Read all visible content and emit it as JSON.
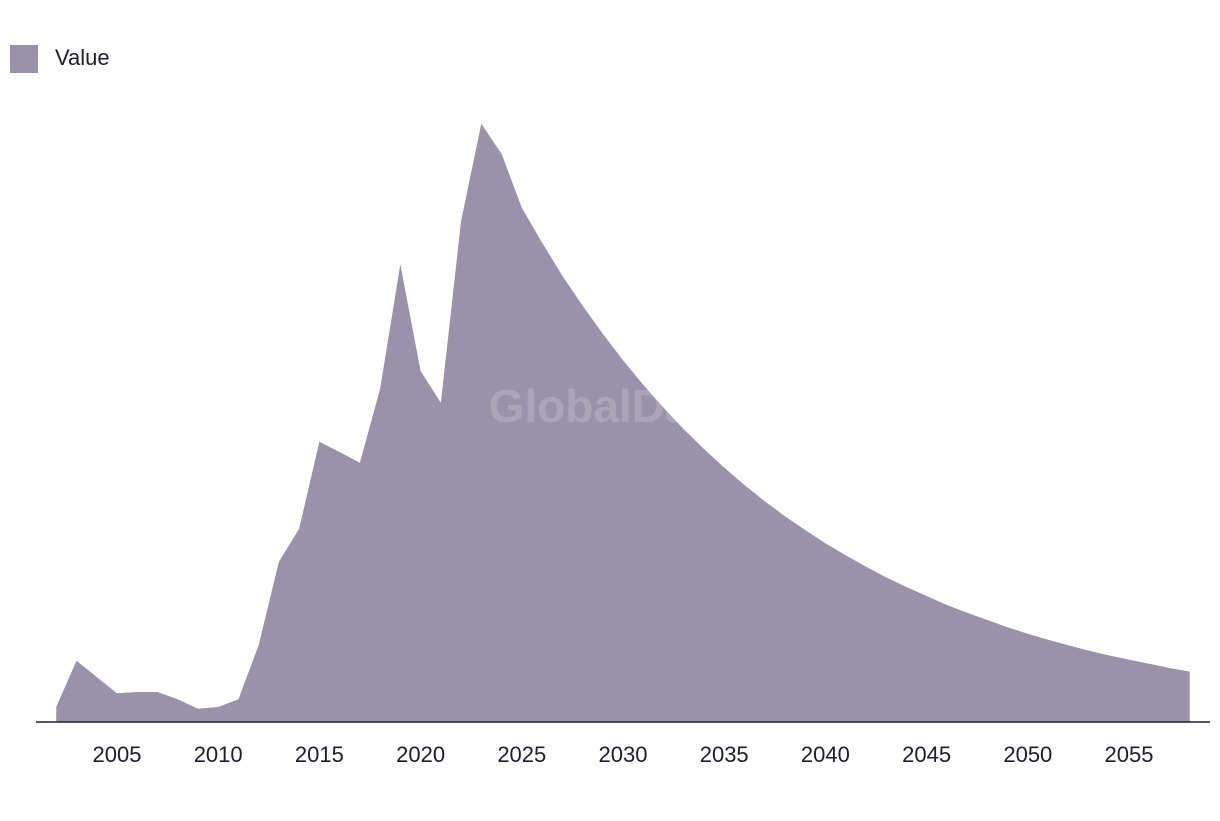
{
  "chart_data": {
    "type": "area",
    "watermark": "GlobalData",
    "legend": "top-left",
    "x": [
      2002,
      2003,
      2004,
      2005,
      2006,
      2007,
      2008,
      2009,
      2010,
      2011,
      2012,
      2013,
      2014,
      2015,
      2016,
      2017,
      2018,
      2019,
      2020,
      2021,
      2022,
      2023,
      2024,
      2025,
      2026,
      2027,
      2028,
      2029,
      2030,
      2031,
      2032,
      2033,
      2034,
      2035,
      2036,
      2037,
      2038,
      2039,
      2040,
      2041,
      2042,
      2043,
      2044,
      2045,
      2046,
      2047,
      2048,
      2049,
      2050,
      2051,
      2052,
      2053,
      2054,
      2055,
      2056,
      2057,
      2058
    ],
    "series": [
      {
        "name": "Value",
        "color": "#9a91aa",
        "values": [
          2.5,
          10.2,
          7.5,
          4.8,
          5.0,
          5.0,
          3.8,
          2.2,
          2.5,
          3.8,
          12.8,
          26.7,
          32.2,
          46.7,
          45.0,
          43.2,
          55.5,
          76.3,
          58.5,
          53.2,
          83.5,
          99.7,
          94.7,
          85.7,
          79.9,
          74.4,
          69.4,
          64.7,
          60.3,
          56.2,
          52.4,
          48.8,
          45.5,
          42.4,
          39.5,
          36.8,
          34.3,
          32.0,
          29.8,
          27.8,
          25.9,
          24.1,
          22.5,
          21.0,
          19.5,
          18.2,
          17.0,
          15.8,
          14.7,
          13.7,
          12.8,
          11.9,
          11.1,
          10.4,
          9.7,
          9.0,
          8.4
        ]
      }
    ],
    "xlim": [
      2001,
      2059
    ],
    "xticks": [
      2005,
      2010,
      2015,
      2020,
      2025,
      2030,
      2035,
      2040,
      2045,
      2050,
      2055
    ],
    "ylim": [
      0,
      100
    ]
  }
}
